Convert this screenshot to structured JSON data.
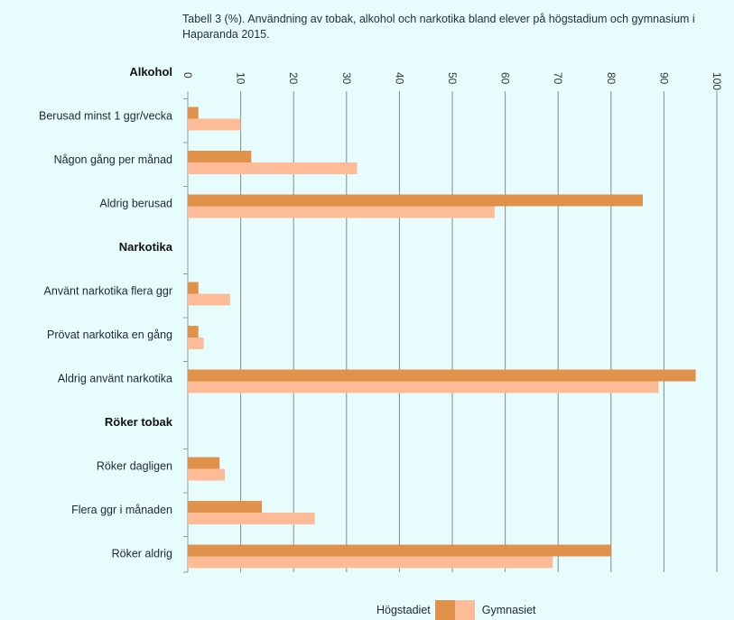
{
  "title": "Tabell 3 (%). Användning av tobak, alkohol och narkotika bland elever på högstadium och gymnasium i Haparanda 2015.",
  "colors": {
    "hogstadiet": "#e0914a",
    "gymnasiet": "#fdbb98",
    "grid": "#8a8a8a",
    "background": "#e6fcfd"
  },
  "chart_data": {
    "type": "bar",
    "orientation": "horizontal",
    "xlim": [
      0,
      100
    ],
    "ticks": [
      "0",
      "10",
      "20",
      "30",
      "40",
      "50",
      "60",
      "70",
      "80",
      "90",
      "100"
    ],
    "groups": [
      {
        "label": "Alkohol",
        "categories": [
          "Berusad minst 1 ggr/vecka",
          "Någon gång per månad",
          "Aldrig berusad"
        ],
        "hogstadiet": [
          2,
          12,
          86
        ],
        "gymnasiet": [
          10,
          32,
          58
        ]
      },
      {
        "label": "Narkotika",
        "categories": [
          "Använt narkotika flera ggr",
          "Prövat narkotika en gång",
          "Aldrig använt narkotika"
        ],
        "hogstadiet": [
          2,
          2,
          96
        ],
        "gymnasiet": [
          8,
          3,
          89
        ]
      },
      {
        "label": "Röker tobak",
        "categories": [
          "Röker dagligen",
          "Flera ggr i månaden",
          "Röker aldrig"
        ],
        "hogstadiet": [
          6,
          14,
          80
        ],
        "gymnasiet": [
          7,
          24,
          69
        ]
      }
    ],
    "series": [
      {
        "name": "Högstadiet"
      },
      {
        "name": "Gymnasiet"
      }
    ],
    "grid": true,
    "legend_position": "bottom"
  }
}
